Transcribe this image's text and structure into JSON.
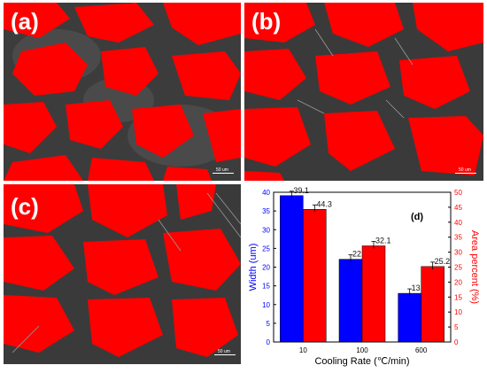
{
  "panels": [
    {
      "label": "(a)",
      "scale_bar": "50 um"
    },
    {
      "label": "(b)",
      "scale_bar": "50 um"
    },
    {
      "label": "(c)",
      "scale_bar": "50 um"
    }
  ],
  "chart_data": {
    "type": "bar",
    "panel_label": "(d)",
    "categories": [
      "10",
      "100",
      "600"
    ],
    "xlabel": "Cooling Rate (℃/min)",
    "series": [
      {
        "name": "Width (um)",
        "axis": "left",
        "color": "#0000ff",
        "values": [
          39.1,
          22.1,
          13.0
        ],
        "labels": [
          "39.1",
          "22.1",
          "13.0"
        ]
      },
      {
        "name": "Area percent (%)",
        "axis": "right",
        "color": "#ff0000",
        "values": [
          44.3,
          32.1,
          25.2
        ],
        "labels": [
          "44.3",
          "32.1",
          "25.2"
        ]
      }
    ],
    "left_axis": {
      "label": "Width (um)",
      "color": "#0000ff",
      "ylim": [
        0,
        40
      ],
      "ticks": [
        0,
        5,
        10,
        15,
        20,
        25,
        30,
        35,
        40
      ]
    },
    "right_axis": {
      "label": "Area percent (%)",
      "color": "#ff0000",
      "ylim": [
        0,
        50
      ],
      "ticks": [
        0,
        5,
        10,
        15,
        20,
        25,
        30,
        35,
        40,
        45,
        50
      ]
    }
  }
}
